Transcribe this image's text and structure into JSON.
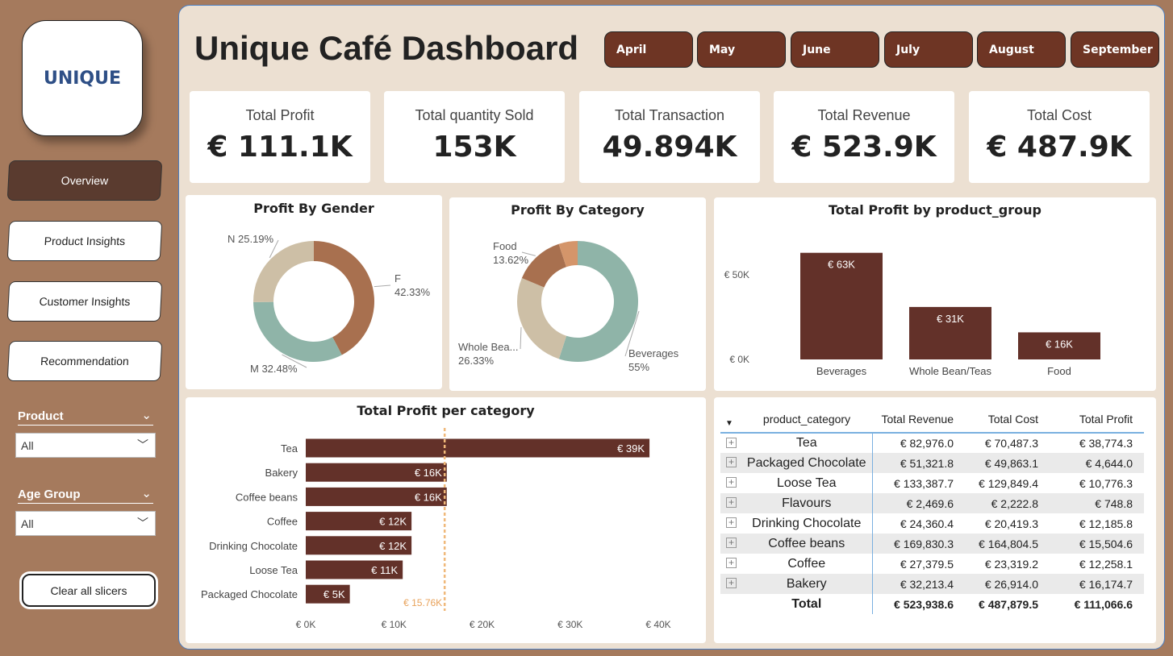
{
  "logo": {
    "text": "UNIQUE"
  },
  "nav": [
    {
      "label": "Overview",
      "active": true
    },
    {
      "label": "Product Insights"
    },
    {
      "label": "Customer Insights"
    },
    {
      "label": "Recommendation"
    }
  ],
  "slicers": [
    {
      "label": "Product",
      "value": "All"
    },
    {
      "label": "Age Group",
      "value": "All"
    }
  ],
  "clear_label": "Clear all slicers",
  "title": "Unique Café Dashboard",
  "months": [
    "April",
    "May",
    "June",
    "July",
    "August",
    "September"
  ],
  "kpis": [
    {
      "label": "Total Profit",
      "value": "€ 111.1K"
    },
    {
      "label": "Total quantity Sold",
      "value": "153K"
    },
    {
      "label": "Total Transaction",
      "value": "49.894K"
    },
    {
      "label": "Total Revenue",
      "value": "€ 523.9K"
    },
    {
      "label": "Total Cost",
      "value": "€ 487.9K"
    }
  ],
  "colors": {
    "sidebar": "#a57a5d",
    "panel": "#ece0d2",
    "month_button": "#6e3524",
    "bar": "#633129",
    "teal": "#8fb4a8",
    "tan": "#a8704f",
    "beige": "#cdbfa6",
    "orange": "#d4956a",
    "avg_line": "#f0b97a"
  },
  "chart_data": [
    {
      "type": "pie",
      "title": "Profit By Gender",
      "donut": true,
      "slices": [
        {
          "name": "F",
          "value": 42.33,
          "label": "42.33%",
          "color": "#a8704f"
        },
        {
          "name": "M",
          "value": 32.48,
          "label": "32.48%",
          "color": "#8fb4a8"
        },
        {
          "name": "N",
          "value": 25.19,
          "label": "25.19%",
          "color": "#cdbfa6"
        }
      ]
    },
    {
      "type": "pie",
      "title": "Profit By Category",
      "donut": true,
      "slices": [
        {
          "name": "Beverages",
          "value": 55,
          "label": "55%",
          "color": "#8fb4a8"
        },
        {
          "name": "Whole Bea...",
          "value": 26.33,
          "label": "26.33%",
          "color": "#cdbfa6"
        },
        {
          "name": "Food",
          "value": 13.62,
          "label": "13.62%",
          "color": "#a8704f"
        },
        {
          "name": "",
          "value": 5.05,
          "label": "",
          "color": "#d4956a"
        }
      ]
    },
    {
      "type": "bar",
      "title": "Total Profit by product_group",
      "categories": [
        "Beverages",
        "Whole Bean/Teas",
        "Food"
      ],
      "values": [
        63,
        31,
        16
      ],
      "data_labels": [
        "€ 63K",
        "€ 31K",
        "€ 16K"
      ],
      "yticks": [
        "€ 0K",
        "€ 50K"
      ],
      "ytick_values": [
        0,
        50
      ],
      "unit": "K€"
    },
    {
      "type": "bar",
      "orientation": "horizontal",
      "title": "Total Profit per category",
      "categories": [
        "Tea",
        "Bakery",
        "Coffee beans",
        "Coffee",
        "Drinking Chocolate",
        "Loose Tea",
        "Packaged Chocolate"
      ],
      "values": [
        39,
        16,
        16,
        12,
        12,
        11,
        5
      ],
      "data_labels": [
        "€ 39K",
        "€ 16K",
        "€ 16K",
        "€ 12K",
        "€ 12K",
        "€ 11K",
        "€ 5K"
      ],
      "xticks": [
        "€ 0K",
        "€ 10K",
        "€ 20K",
        "€ 30K",
        "€ 40K"
      ],
      "xtick_values": [
        0,
        10,
        20,
        30,
        40
      ],
      "xlim": [
        0,
        40
      ],
      "average_line": {
        "value": 15.76,
        "label": "€ 15.76K"
      }
    }
  ],
  "table": {
    "headers": [
      "product_category",
      "Total Revenue",
      "Total Cost",
      "Total Profit"
    ],
    "rows": [
      [
        "Tea",
        "€ 82,976.0",
        "€ 70,487.3",
        "€ 38,774.3"
      ],
      [
        "Packaged Chocolate",
        "€ 51,321.8",
        "€ 49,863.1",
        "€ 4,644.0"
      ],
      [
        "Loose Tea",
        "€ 133,387.7",
        "€ 129,849.4",
        "€ 10,776.3"
      ],
      [
        "Flavours",
        "€ 2,469.6",
        "€ 2,222.8",
        "€ 748.8"
      ],
      [
        "Drinking Chocolate",
        "€ 24,360.4",
        "€ 20,419.3",
        "€ 12,185.8"
      ],
      [
        "Coffee beans",
        "€ 169,830.3",
        "€ 164,804.5",
        "€ 15,504.6"
      ],
      [
        "Coffee",
        "€ 27,379.5",
        "€ 23,319.2",
        "€ 12,258.1"
      ],
      [
        "Bakery",
        "€ 32,213.4",
        "€ 26,914.0",
        "€ 16,174.7"
      ]
    ],
    "total": [
      "Total",
      "€ 523,938.6",
      "€ 487,879.5",
      "€ 111,066.6"
    ]
  }
}
